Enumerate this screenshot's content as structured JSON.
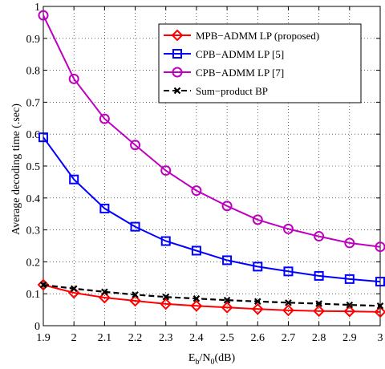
{
  "chart_data": {
    "type": "line",
    "xlabel": {
      "base": "E",
      "sub1": "b",
      "mid": "/N",
      "sub2": "0",
      "tail": "(dB)"
    },
    "ylabel": "Average decoding time (.sec)",
    "xlim": [
      1.9,
      3.0
    ],
    "ylim": [
      0,
      1
    ],
    "xticks": [
      1.9,
      2.0,
      2.1,
      2.2,
      2.3,
      2.4,
      2.5,
      2.6,
      2.7,
      2.8,
      2.9,
      3.0
    ],
    "xtick_labels": [
      "1.9",
      "2",
      "2.1",
      "2.2",
      "2.3",
      "2.4",
      "2.5",
      "2.6",
      "2.7",
      "2.8",
      "2.9",
      "3"
    ],
    "yticks": [
      0,
      0.1,
      0.2,
      0.3,
      0.4,
      0.5,
      0.6,
      0.7,
      0.8,
      0.9,
      1.0
    ],
    "ytick_labels": [
      "0",
      "0.1",
      "0.2",
      "0.3",
      "0.4",
      "0.5",
      "0.6",
      "0.7",
      "0.8",
      "0.9",
      "1"
    ],
    "grid": true,
    "legend_position": "top-right",
    "x": [
      1.9,
      2.0,
      2.1,
      2.2,
      2.3,
      2.4,
      2.5,
      2.6,
      2.7,
      2.8,
      2.9,
      3.0
    ],
    "series": [
      {
        "name": "MPB−ADMM LP (proposed)",
        "color": "#ff0000",
        "marker": "diamond",
        "dash": "solid",
        "values": [
          0.128,
          0.103,
          0.088,
          0.078,
          0.068,
          0.062,
          0.057,
          0.052,
          0.048,
          0.046,
          0.045,
          0.043
        ]
      },
      {
        "name": "CPB−ADMM LP [5]",
        "color": "#0000ff",
        "marker": "square",
        "dash": "solid",
        "values": [
          0.59,
          0.458,
          0.367,
          0.31,
          0.265,
          0.235,
          0.205,
          0.185,
          0.17,
          0.156,
          0.146,
          0.138
        ]
      },
      {
        "name": "CPB−ADMM LP [7]",
        "color": "#c000c0",
        "marker": "circle",
        "dash": "solid",
        "values": [
          0.972,
          0.773,
          0.648,
          0.566,
          0.486,
          0.423,
          0.375,
          0.332,
          0.303,
          0.28,
          0.259,
          0.247
        ]
      },
      {
        "name": "Sum−product BP",
        "color": "#000000",
        "marker": "x",
        "dash": "dashed",
        "values": [
          0.128,
          0.116,
          0.106,
          0.097,
          0.09,
          0.085,
          0.08,
          0.076,
          0.072,
          0.069,
          0.065,
          0.062
        ]
      }
    ]
  }
}
